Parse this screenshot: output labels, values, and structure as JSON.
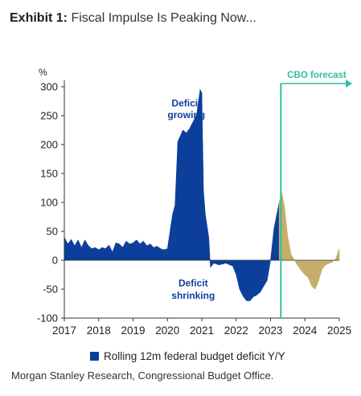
{
  "title": {
    "bold": "Exhibit 1:",
    "rest": "Fiscal Impulse Is Peaking Now..."
  },
  "colors": {
    "deficit": "#0b3f9b",
    "forecast": "#c7ad6a",
    "cbo": "#2fbfa3",
    "axis": "#333333"
  },
  "chart_data": {
    "type": "area",
    "ylabel": "%",
    "ylim": [
      -100,
      300
    ],
    "yticks": [
      -100,
      -50,
      0,
      50,
      100,
      150,
      200,
      250,
      300
    ],
    "xlim": [
      2017,
      2025
    ],
    "xticks": [
      2017,
      2018,
      2019,
      2020,
      2021,
      2022,
      2023,
      2024,
      2025
    ],
    "grid": false,
    "legend_position": "bottom",
    "series": [
      {
        "name": "Rolling 12m federal budget deficit Y/Y",
        "color": "#0b3f9b",
        "points": [
          [
            2017.0,
            40
          ],
          [
            2017.1,
            28
          ],
          [
            2017.2,
            36
          ],
          [
            2017.3,
            25
          ],
          [
            2017.4,
            35
          ],
          [
            2017.5,
            22
          ],
          [
            2017.6,
            35
          ],
          [
            2017.7,
            25
          ],
          [
            2017.8,
            20
          ],
          [
            2017.9,
            22
          ],
          [
            2018.0,
            18
          ],
          [
            2018.1,
            22
          ],
          [
            2018.2,
            20
          ],
          [
            2018.3,
            26
          ],
          [
            2018.4,
            14
          ],
          [
            2018.5,
            30
          ],
          [
            2018.6,
            28
          ],
          [
            2018.7,
            22
          ],
          [
            2018.8,
            33
          ],
          [
            2018.9,
            28
          ],
          [
            2019.0,
            30
          ],
          [
            2019.1,
            35
          ],
          [
            2019.2,
            28
          ],
          [
            2019.3,
            33
          ],
          [
            2019.4,
            25
          ],
          [
            2019.5,
            28
          ],
          [
            2019.6,
            22
          ],
          [
            2019.7,
            24
          ],
          [
            2019.8,
            20
          ],
          [
            2019.9,
            18
          ],
          [
            2020.0,
            20
          ],
          [
            2020.05,
            40
          ],
          [
            2020.15,
            80
          ],
          [
            2020.22,
            95
          ],
          [
            2020.3,
            205
          ],
          [
            2020.45,
            225
          ],
          [
            2020.55,
            220
          ],
          [
            2020.65,
            228
          ],
          [
            2020.75,
            240
          ],
          [
            2020.85,
            252
          ],
          [
            2020.95,
            295
          ],
          [
            2021.0,
            290
          ],
          [
            2021.05,
            120
          ],
          [
            2021.1,
            80
          ],
          [
            2021.2,
            40
          ],
          [
            2021.25,
            -12
          ],
          [
            2021.35,
            -5
          ],
          [
            2021.5,
            -8
          ],
          [
            2021.7,
            -5
          ],
          [
            2021.9,
            -10
          ],
          [
            2022.0,
            -25
          ],
          [
            2022.1,
            -50
          ],
          [
            2022.2,
            -62
          ],
          [
            2022.3,
            -70
          ],
          [
            2022.4,
            -70
          ],
          [
            2022.5,
            -63
          ],
          [
            2022.6,
            -60
          ],
          [
            2022.7,
            -55
          ],
          [
            2022.8,
            -45
          ],
          [
            2022.9,
            -35
          ],
          [
            2023.0,
            0
          ],
          [
            2023.1,
            55
          ],
          [
            2023.2,
            85
          ],
          [
            2023.25,
            100
          ]
        ]
      },
      {
        "name": "CBO forecast",
        "color": "#c7ad6a",
        "points": [
          [
            2023.25,
            100
          ],
          [
            2023.32,
            118
          ],
          [
            2023.4,
            95
          ],
          [
            2023.5,
            40
          ],
          [
            2023.6,
            10
          ],
          [
            2023.7,
            0
          ],
          [
            2023.8,
            -10
          ],
          [
            2023.9,
            -18
          ],
          [
            2024.0,
            -25
          ],
          [
            2024.1,
            -30
          ],
          [
            2024.2,
            -45
          ],
          [
            2024.3,
            -50
          ],
          [
            2024.4,
            -35
          ],
          [
            2024.5,
            -15
          ],
          [
            2024.6,
            -8
          ],
          [
            2024.8,
            -3
          ],
          [
            2024.9,
            3
          ],
          [
            2025.0,
            20
          ]
        ]
      }
    ],
    "annotations": [
      {
        "text": "Deficit",
        "x": 2020.55,
        "y": 266
      },
      {
        "text": "growing",
        "x": 2020.55,
        "y": 246
      },
      {
        "text": "Deficit",
        "x": 2020.75,
        "y": -45
      },
      {
        "text": "shrinking",
        "x": 2020.75,
        "y": -67
      }
    ],
    "forecast_marker": {
      "x": 2023.3,
      "label": "CBO forecast"
    }
  },
  "legend_label": "Rolling 12m federal budget deficit Y/Y",
  "source": "Morgan Stanley Research, Congressional Budget Office."
}
